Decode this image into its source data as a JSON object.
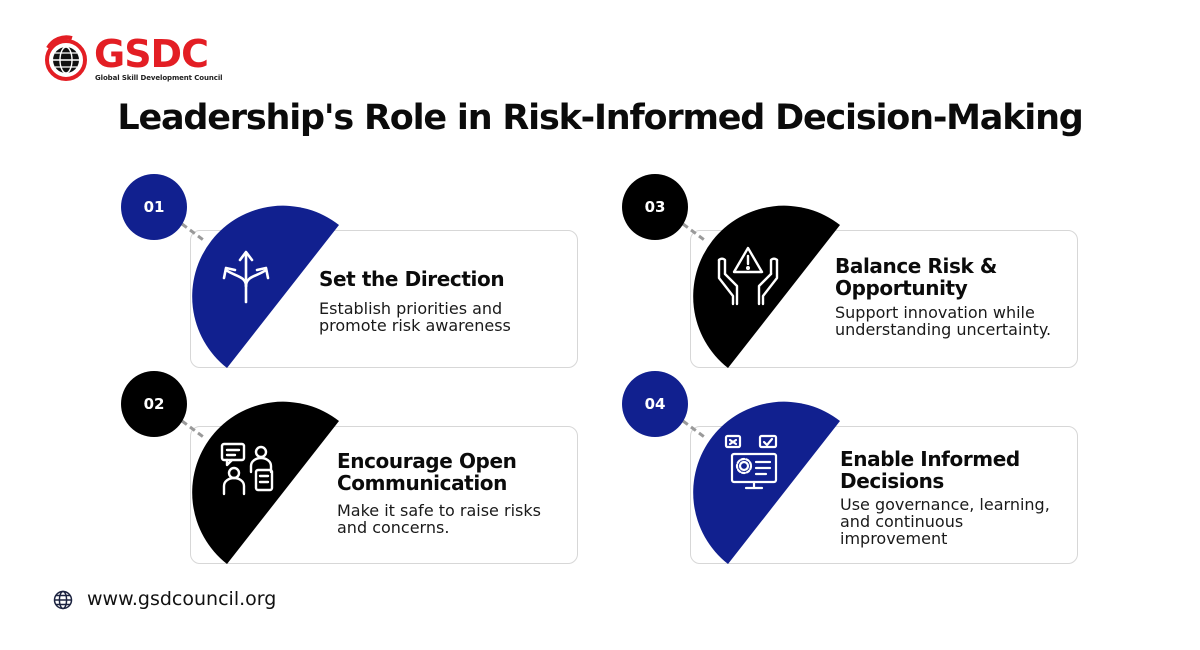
{
  "logo": {
    "brand": "GSDC",
    "subtitle": "Global Skill Development Council"
  },
  "title": "Leadership's Role in Risk-Informed Decision-Making",
  "colors": {
    "blue": "#11208f",
    "black": "#000000",
    "brand_red": "#e31e24"
  },
  "steps": [
    {
      "number": "01",
      "title": "Set the Direction",
      "description": "Establish priorities and promote risk awareness",
      "color": "blue",
      "icon": "diverging-arrows-icon"
    },
    {
      "number": "02",
      "title": "Encourage Open Communication",
      "description": "Make it safe to raise risks and concerns.",
      "color": "black",
      "icon": "people-chat-icon"
    },
    {
      "number": "03",
      "title": "Balance Risk & Opportunity",
      "description": "Support innovation while understanding uncertainty.",
      "color": "black",
      "icon": "hands-warning-icon"
    },
    {
      "number": "04",
      "title": "Enable Informed Decisions",
      "description": "Use governance, learning, and continuous improvement",
      "color": "blue",
      "icon": "monitor-settings-icon"
    }
  ],
  "footer": {
    "url": "www.gsdcouncil.org",
    "icon": "globe-icon"
  }
}
